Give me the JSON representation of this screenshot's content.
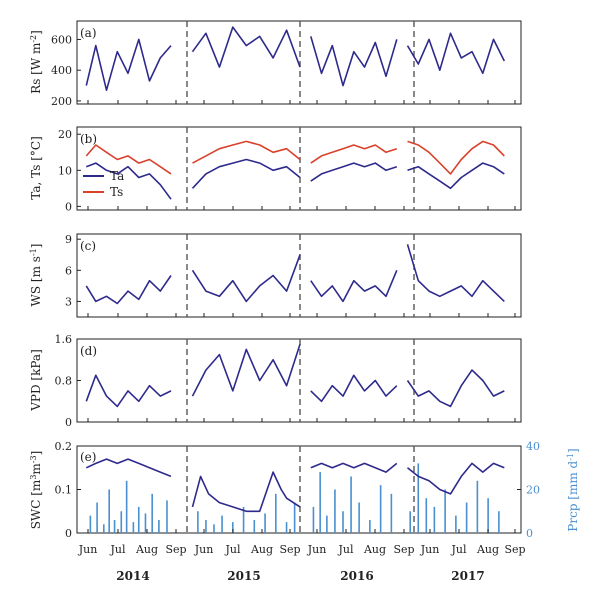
{
  "chart_data": [
    {
      "type": "line",
      "panel_label": "(a)",
      "ylabel": "Rs [W m^-2]",
      "ylabel_base": "Rs [W m",
      "ylabel_sup": "-2",
      "ylabel_end": "]",
      "ylim": [
        180,
        720
      ],
      "yticks": [
        "200",
        "400",
        "600"
      ],
      "ytick_values": [
        200,
        400,
        600
      ],
      "series": [
        {
          "color": "#2e2a8c",
          "segments": [
            {
              "x": [
                1,
                8,
                16,
                24,
                32,
                40,
                48,
                56,
                64
              ],
              "y": [
                300,
                560,
                270,
                520,
                380,
                600,
                330,
                480,
                560
              ]
            },
            {
              "x": [
                80,
                90,
                100,
                110,
                120,
                130,
                140,
                150,
                160
              ],
              "y": [
                520,
                640,
                420,
                680,
                560,
                620,
                480,
                660,
                420
              ]
            },
            {
              "x": [
                168,
                176,
                184,
                192,
                200,
                208,
                216,
                224,
                232
              ],
              "y": [
                620,
                380,
                560,
                300,
                520,
                420,
                580,
                360,
                600
              ]
            },
            {
              "x": [
                240,
                248,
                256,
                264,
                272,
                280,
                288,
                296,
                304,
                312
              ],
              "y": [
                560,
                440,
                600,
                400,
                640,
                480,
                520,
                380,
                600,
                460
              ]
            }
          ]
        }
      ]
    },
    {
      "type": "line",
      "panel_label": "(b)",
      "ylabel": "Ta, Ts [°C]",
      "ylim": [
        -1,
        22
      ],
      "yticks": [
        "0",
        "10",
        "20"
      ],
      "ytick_values": [
        0,
        10,
        20
      ],
      "legend_position": "left",
      "series": [
        {
          "name": "Ta",
          "color": "#2e2a8c",
          "segments": [
            {
              "x": [
                1,
                8,
                16,
                24,
                32,
                40,
                48,
                56,
                64
              ],
              "y": [
                11,
                12,
                10,
                9,
                11,
                8,
                9,
                6,
                2
              ]
            },
            {
              "x": [
                80,
                90,
                100,
                110,
                120,
                130,
                140,
                150,
                160
              ],
              "y": [
                5,
                9,
                11,
                12,
                13,
                12,
                10,
                11,
                8
              ]
            },
            {
              "x": [
                168,
                176,
                184,
                192,
                200,
                208,
                216,
                224,
                232
              ],
              "y": [
                7,
                9,
                10,
                11,
                12,
                11,
                12,
                10,
                11
              ]
            },
            {
              "x": [
                240,
                248,
                256,
                264,
                272,
                280,
                288,
                296,
                304,
                312
              ],
              "y": [
                10,
                11,
                9,
                7,
                5,
                8,
                10,
                12,
                11,
                9
              ]
            }
          ]
        },
        {
          "name": "Ts",
          "color": "#d9412b",
          "segments": [
            {
              "x": [
                1,
                8,
                16,
                24,
                32,
                40,
                48,
                56,
                64
              ],
              "y": [
                14,
                17,
                15,
                13,
                14,
                12,
                13,
                11,
                9
              ]
            },
            {
              "x": [
                80,
                90,
                100,
                110,
                120,
                130,
                140,
                150,
                160
              ],
              "y": [
                12,
                14,
                16,
                17,
                18,
                17,
                15,
                16,
                13
              ]
            },
            {
              "x": [
                168,
                176,
                184,
                192,
                200,
                208,
                216,
                224,
                232
              ],
              "y": [
                12,
                14,
                15,
                16,
                17,
                16,
                17,
                15,
                16
              ]
            },
            {
              "x": [
                240,
                248,
                256,
                264,
                272,
                280,
                288,
                296,
                304,
                312
              ],
              "y": [
                18,
                17,
                15,
                12,
                9,
                13,
                16,
                18,
                17,
                14
              ]
            }
          ]
        }
      ]
    },
    {
      "type": "line",
      "panel_label": "(c)",
      "ylabel": "WS [m s^-1]",
      "ylabel_base": "WS [m s",
      "ylabel_sup": "-1",
      "ylabel_end": "]",
      "ylim": [
        1.5,
        9.5
      ],
      "yticks": [
        "3",
        "6",
        "9"
      ],
      "ytick_values": [
        3,
        6,
        9
      ],
      "series": [
        {
          "color": "#2e2a8c",
          "segments": [
            {
              "x": [
                1,
                8,
                16,
                24,
                32,
                40,
                48,
                56,
                64
              ],
              "y": [
                4.5,
                3,
                3.5,
                2.8,
                4,
                3.2,
                5,
                4,
                5.5
              ]
            },
            {
              "x": [
                80,
                90,
                100,
                110,
                120,
                130,
                140,
                150,
                160
              ],
              "y": [
                6,
                4,
                3.5,
                5,
                3,
                4.5,
                5.5,
                4,
                7.5
              ]
            },
            {
              "x": [
                168,
                176,
                184,
                192,
                200,
                208,
                216,
                224,
                232
              ],
              "y": [
                5,
                3.5,
                4.5,
                3,
                5,
                4,
                4.5,
                3.5,
                6
              ]
            },
            {
              "x": [
                240,
                248,
                256,
                264,
                272,
                280,
                288,
                296,
                304,
                312
              ],
              "y": [
                8.5,
                5,
                4,
                3.5,
                4,
                4.5,
                3.5,
                5,
                4,
                3
              ]
            }
          ]
        }
      ]
    },
    {
      "type": "line",
      "panel_label": "(d)",
      "ylabel": "VPD [kPa]",
      "ylim": [
        0,
        1.6
      ],
      "yticks": [
        "0",
        "0.8",
        "1.6"
      ],
      "ytick_values": [
        0,
        0.8,
        1.6
      ],
      "series": [
        {
          "color": "#2e2a8c",
          "segments": [
            {
              "x": [
                1,
                8,
                16,
                24,
                32,
                40,
                48,
                56,
                64
              ],
              "y": [
                0.4,
                0.9,
                0.5,
                0.3,
                0.6,
                0.4,
                0.7,
                0.5,
                0.6
              ]
            },
            {
              "x": [
                80,
                90,
                100,
                110,
                120,
                130,
                140,
                150,
                160
              ],
              "y": [
                0.5,
                1.0,
                1.3,
                0.6,
                1.4,
                0.8,
                1.2,
                0.7,
                1.5
              ]
            },
            {
              "x": [
                168,
                176,
                184,
                192,
                200,
                208,
                216,
                224,
                232
              ],
              "y": [
                0.6,
                0.4,
                0.7,
                0.5,
                0.9,
                0.6,
                0.8,
                0.5,
                0.7
              ]
            },
            {
              "x": [
                240,
                248,
                256,
                264,
                272,
                280,
                288,
                296,
                304,
                312
              ],
              "y": [
                0.8,
                0.5,
                0.6,
                0.4,
                0.3,
                0.7,
                1.0,
                0.8,
                0.5,
                0.6
              ]
            }
          ]
        }
      ]
    },
    {
      "type": "line",
      "panel_label": "(e)",
      "ylabel": "SWC [m^3 m^-3]",
      "ylabel_base": "SWC [m",
      "ylabel_sup1": "3",
      "ylabel_mid": "m",
      "ylabel_sup2": "-3",
      "ylabel_end": "]",
      "ylim": [
        0,
        0.2
      ],
      "yticks": [
        "0",
        "0.1",
        "0.2"
      ],
      "ytick_values": [
        0,
        0.1,
        0.2
      ],
      "y2label": "Prcp [mm d^-1]",
      "y2label_base": "Prcp [mm d",
      "y2label_sup": "-1",
      "y2label_end": "]",
      "y2lim": [
        0,
        40
      ],
      "y2ticks": [
        "0",
        "20",
        "40"
      ],
      "y2tick_values": [
        0,
        20,
        40
      ],
      "x_categories": [
        "Jun",
        "Jul",
        "Aug",
        "Sep",
        "Jun",
        "Jul",
        "Aug",
        "Sep",
        "Jun",
        "Jul",
        "Aug",
        "Sep",
        "Jun",
        "Jul",
        "Aug",
        "Sep"
      ],
      "years": [
        "2014",
        "2015",
        "2016",
        "2017"
      ],
      "series": [
        {
          "name": "SWC",
          "color": "#2e2a8c",
          "segments": [
            {
              "x": [
                1,
                8,
                16,
                24,
                32,
                40,
                48,
                56,
                64
              ],
              "y": [
                0.15,
                0.16,
                0.17,
                0.16,
                0.17,
                0.16,
                0.15,
                0.14,
                0.13
              ]
            },
            {
              "x": [
                80,
                86,
                92,
                100,
                110,
                120,
                130,
                140,
                146,
                150,
                160
              ],
              "y": [
                0.06,
                0.13,
                0.09,
                0.07,
                0.06,
                0.05,
                0.05,
                0.14,
                0.1,
                0.08,
                0.06
              ]
            },
            {
              "x": [
                168,
                176,
                184,
                192,
                200,
                208,
                216,
                224,
                232
              ],
              "y": [
                0.15,
                0.16,
                0.15,
                0.16,
                0.15,
                0.16,
                0.15,
                0.14,
                0.16
              ]
            },
            {
              "x": [
                240,
                248,
                256,
                264,
                272,
                280,
                288,
                296,
                304,
                312
              ],
              "y": [
                0.15,
                0.13,
                0.12,
                0.1,
                0.09,
                0.13,
                0.16,
                0.14,
                0.16,
                0.15
              ]
            }
          ]
        },
        {
          "name": "Prcp",
          "type": "bar",
          "color": "#4a8fd0",
          "x": [
            4,
            9,
            14,
            18,
            22,
            27,
            31,
            36,
            40,
            45,
            50,
            55,
            61,
            84,
            90,
            96,
            102,
            110,
            118,
            126,
            134,
            142,
            150,
            156,
            170,
            175,
            180,
            186,
            192,
            198,
            204,
            212,
            220,
            228,
            242,
            248,
            254,
            260,
            268,
            276,
            284,
            292,
            300,
            308
          ],
          "values": [
            8,
            14,
            4,
            20,
            6,
            10,
            24,
            5,
            12,
            9,
            18,
            6,
            15,
            10,
            6,
            4,
            8,
            5,
            12,
            6,
            9,
            18,
            5,
            14,
            12,
            28,
            8,
            20,
            10,
            26,
            14,
            6,
            22,
            18,
            10,
            32,
            16,
            12,
            20,
            8,
            14,
            24,
            16,
            10
          ]
        }
      ]
    }
  ]
}
